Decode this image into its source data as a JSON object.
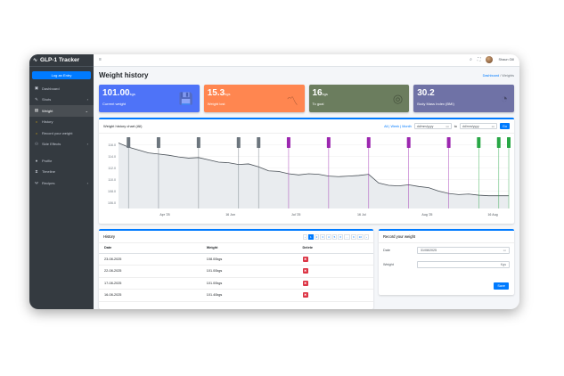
{
  "app": {
    "brand": "GLP-1 Tracker",
    "logo_icon": "wave-icon",
    "login_label": "Log an Entry"
  },
  "sidebar": {
    "items": [
      {
        "label": "Dashboard",
        "icon": "dashboard-icon",
        "glyph": "▣"
      },
      {
        "label": "Shots",
        "icon": "syringe-icon",
        "glyph": "✎",
        "chevron": "›"
      },
      {
        "label": "Weight",
        "icon": "scale-icon",
        "glyph": "▤",
        "chevron": "⌄"
      },
      {
        "label": "History",
        "icon": "circle-icon",
        "glyph": "○"
      },
      {
        "label": "Record your weight",
        "icon": "circle-icon",
        "glyph": "○"
      },
      {
        "label": "Side Effects",
        "icon": "side-effects-icon",
        "glyph": "⚇",
        "chevron": "›"
      },
      {
        "label": "Profile",
        "icon": "user-icon",
        "glyph": "●"
      },
      {
        "label": "Timeline",
        "icon": "hourglass-icon",
        "glyph": "⧗"
      },
      {
        "label": "Recipes",
        "icon": "utensils-icon",
        "glyph": "Ψ",
        "chevron": "›"
      }
    ]
  },
  "topbar": {
    "menu_glyph": "≡",
    "search_glyph": "⌕",
    "fullscreen_glyph": "⛶",
    "user_name": "Shaun Gill"
  },
  "header": {
    "title": "Weight history",
    "breadcrumb_home": "Dashboard",
    "breadcrumb_sep": "/",
    "breadcrumb_current": "Weights"
  },
  "cards": [
    {
      "value": "101.00",
      "unit": "kgs",
      "label": "Current weight",
      "color": "#4e73f8",
      "icon": "save-icon",
      "glyph": "💾"
    },
    {
      "value": "15.3",
      "unit": "kgs",
      "label": "Weight lost",
      "color": "#ff8650",
      "icon": "chart-line-icon",
      "glyph": "〽"
    },
    {
      "value": "16",
      "unit": "kgs",
      "label": "To goal",
      "color": "#6b7d5e",
      "icon": "target-icon",
      "glyph": "◎"
    },
    {
      "value": "30.2",
      "unit": "",
      "label": "Body Mass Index (BMI)",
      "color": "#6f72a6",
      "icon": "gauge-icon",
      "glyph": "◔"
    }
  ],
  "chart": {
    "title": "Weight history chart (All)",
    "range_links": "All | Week | Month",
    "date_placeholder": "dd/mm/yyyy",
    "to_label": "to",
    "go_label": "Go"
  },
  "chart_data": {
    "type": "area",
    "x_tick_labels": [
      "Apr '25",
      "16 Jun",
      "Jul '25",
      "16 Jul",
      "Aug '25",
      "16 Aug"
    ],
    "y_tick_labels": [
      "116.0",
      "114.0",
      "112.0",
      "110.0",
      "108.0",
      "106.0"
    ],
    "ylim": [
      105,
      117
    ],
    "series": [
      {
        "values": [
          116.3,
          115.6,
          115.1,
          114.6,
          114.4,
          114.2,
          113.9,
          113.7,
          113.8,
          113.4,
          113.0,
          112.9,
          112.6,
          112.7,
          112.2,
          111.5,
          111.4,
          111.0,
          110.8,
          111.0,
          110.9,
          110.6,
          110.5,
          110.6,
          110.7,
          110.9,
          109.4,
          109.0,
          108.9,
          109.1,
          108.8,
          108.6,
          108.0,
          107.6,
          107.4,
          107.5,
          107.3,
          107.2,
          107.2,
          107.2
        ]
      }
    ],
    "markers": [
      {
        "x_index": 1,
        "color": "#6c757d"
      },
      {
        "x_index": 4,
        "color": "#6c757d"
      },
      {
        "x_index": 8,
        "color": "#6c757d"
      },
      {
        "x_index": 12,
        "color": "#6c757d"
      },
      {
        "x_index": 14,
        "color": "#6c757d"
      },
      {
        "x_index": 17,
        "color": "#9c27b0"
      },
      {
        "x_index": 21,
        "color": "#9c27b0"
      },
      {
        "x_index": 25,
        "color": "#9c27b0"
      },
      {
        "x_index": 29,
        "color": "#9c27b0"
      },
      {
        "x_index": 33,
        "color": "#9c27b0"
      },
      {
        "x_index": 36,
        "color": "#28a745"
      },
      {
        "x_index": 38,
        "color": "#28a745"
      },
      {
        "x_index": 39,
        "color": "#28a745"
      }
    ]
  },
  "history": {
    "title": "History",
    "pages": [
      "‹",
      "1",
      "2",
      "3",
      "4",
      "5",
      "6",
      "…",
      "9",
      "10",
      "›"
    ],
    "columns": [
      "Date",
      "Weight",
      "Delete"
    ],
    "rows": [
      {
        "date": "23-08-2025",
        "weight": "108.00kgs"
      },
      {
        "date": "22-08-2025",
        "weight": "101.00kgs"
      },
      {
        "date": "17-08-2025",
        "weight": "101.00kgs"
      },
      {
        "date": "16-08-2025",
        "weight": "101.40kgs"
      }
    ],
    "delete_glyph": "✖"
  },
  "record": {
    "title": "Record your weight",
    "date_label": "Date",
    "date_value": "31/08/2025",
    "weight_label": "Weight",
    "weight_suffix": "Kgs",
    "save_label": "Save"
  }
}
